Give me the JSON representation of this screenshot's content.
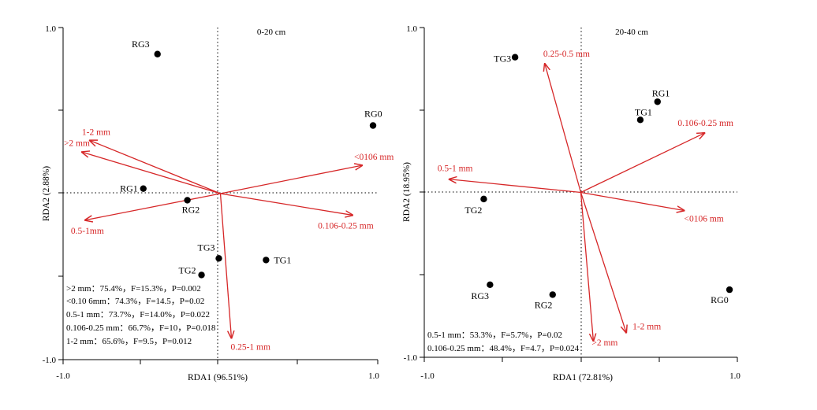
{
  "colors": {
    "arrow": "#d62728",
    "point": "#000000",
    "axis": "#000000"
  },
  "chart_data": [
    {
      "type": "scatter",
      "title": "0-20 cm",
      "xlabel": "RDA1 (96.51%)",
      "ylabel": "RDA2 (2.88%)",
      "xlim": [
        -1.0,
        1.0
      ],
      "ylim": [
        -1.0,
        1.0
      ],
      "x_ticks": [
        "-1.0",
        "1.0"
      ],
      "y_ticks": [
        "1.0",
        "-1.0"
      ],
      "grid": false,
      "reference_lines": "dotted at x=0 and y=0",
      "points": [
        {
          "label": "RG3",
          "x": -0.4,
          "y": 0.84
        },
        {
          "label": "RG0",
          "x": 0.97,
          "y": 0.41
        },
        {
          "label": "RG1",
          "x": -0.49,
          "y": 0.03
        },
        {
          "label": "RG2",
          "x": -0.21,
          "y": -0.04
        },
        {
          "label": "TG3",
          "x": -0.01,
          "y": -0.39
        },
        {
          "label": "TG1",
          "x": 0.29,
          "y": -0.4
        },
        {
          "label": "TG2",
          "x": -0.12,
          "y": -0.49
        }
      ],
      "arrows": [
        {
          "label": "1-2 mm",
          "x": -0.83,
          "y": 0.32
        },
        {
          "label": ">2 mm",
          "x": -0.88,
          "y": 0.25
        },
        {
          "label": "<0106 mm",
          "x": 0.9,
          "y": 0.17
        },
        {
          "label": "0.5-1mm",
          "x": -0.86,
          "y": -0.16
        },
        {
          "label": "0.106-0.25 mm",
          "x": 0.84,
          "y": -0.13
        },
        {
          "label": "0.25-1 mm",
          "x": 0.07,
          "y": -0.87
        }
      ],
      "annotations": [
        ">2 mm：75.4%，F=15.3%，P=0.002",
        "<0.10 6mm：74.3%，F=14.5，P=0.02",
        "0.5-1 mm：73.7%，F=14.0%，P=0.022",
        "0.106-0.25 mm：66.7%，F=10，P=0.018",
        "1-2 mm：65.6%，F=9.5，P=0.012"
      ]
    },
    {
      "type": "scatter",
      "title": "20-40 cm",
      "xlabel": "RDA1 (72.81%)",
      "ylabel": "RDA2 (18.95%)",
      "xlim": [
        -1.0,
        1.0
      ],
      "ylim": [
        -1.0,
        1.0
      ],
      "x_ticks": [
        "-1.0",
        "1.0"
      ],
      "y_ticks": [
        "1.0",
        "-1.0"
      ],
      "grid": false,
      "reference_lines": "dotted at x=0 and y=0",
      "points": [
        {
          "label": "TG3",
          "x": -0.42,
          "y": 0.82
        },
        {
          "label": "RG1",
          "x": 0.49,
          "y": 0.55
        },
        {
          "label": "TG1",
          "x": 0.38,
          "y": 0.44
        },
        {
          "label": "TG2",
          "x": -0.62,
          "y": -0.04
        },
        {
          "label": "RG3",
          "x": -0.58,
          "y": -0.56
        },
        {
          "label": "RG2",
          "x": -0.18,
          "y": -0.62
        },
        {
          "label": "RG0",
          "x": 0.95,
          "y": -0.59
        }
      ],
      "arrows": [
        {
          "label": "0.25-0.5 mm",
          "x": -0.23,
          "y": 0.78
        },
        {
          "label": "0.106-0.25 mm",
          "x": 0.79,
          "y": 0.36
        },
        {
          "label": "0.5-1 mm",
          "x": -0.84,
          "y": 0.08
        },
        {
          "label": "<0106 mm",
          "x": 0.66,
          "y": -0.11
        },
        {
          "label": ">2 mm",
          "x": 0.08,
          "y": -0.9
        },
        {
          "label": "1-2 mm",
          "x": 0.29,
          "y": -0.85
        }
      ],
      "annotations": [
        "0.5-1 mm：53.3%，F=5.7%，P=0.02",
        "0.106-0.25 mm：48.4%，F=4.7，P=0.024"
      ]
    }
  ]
}
